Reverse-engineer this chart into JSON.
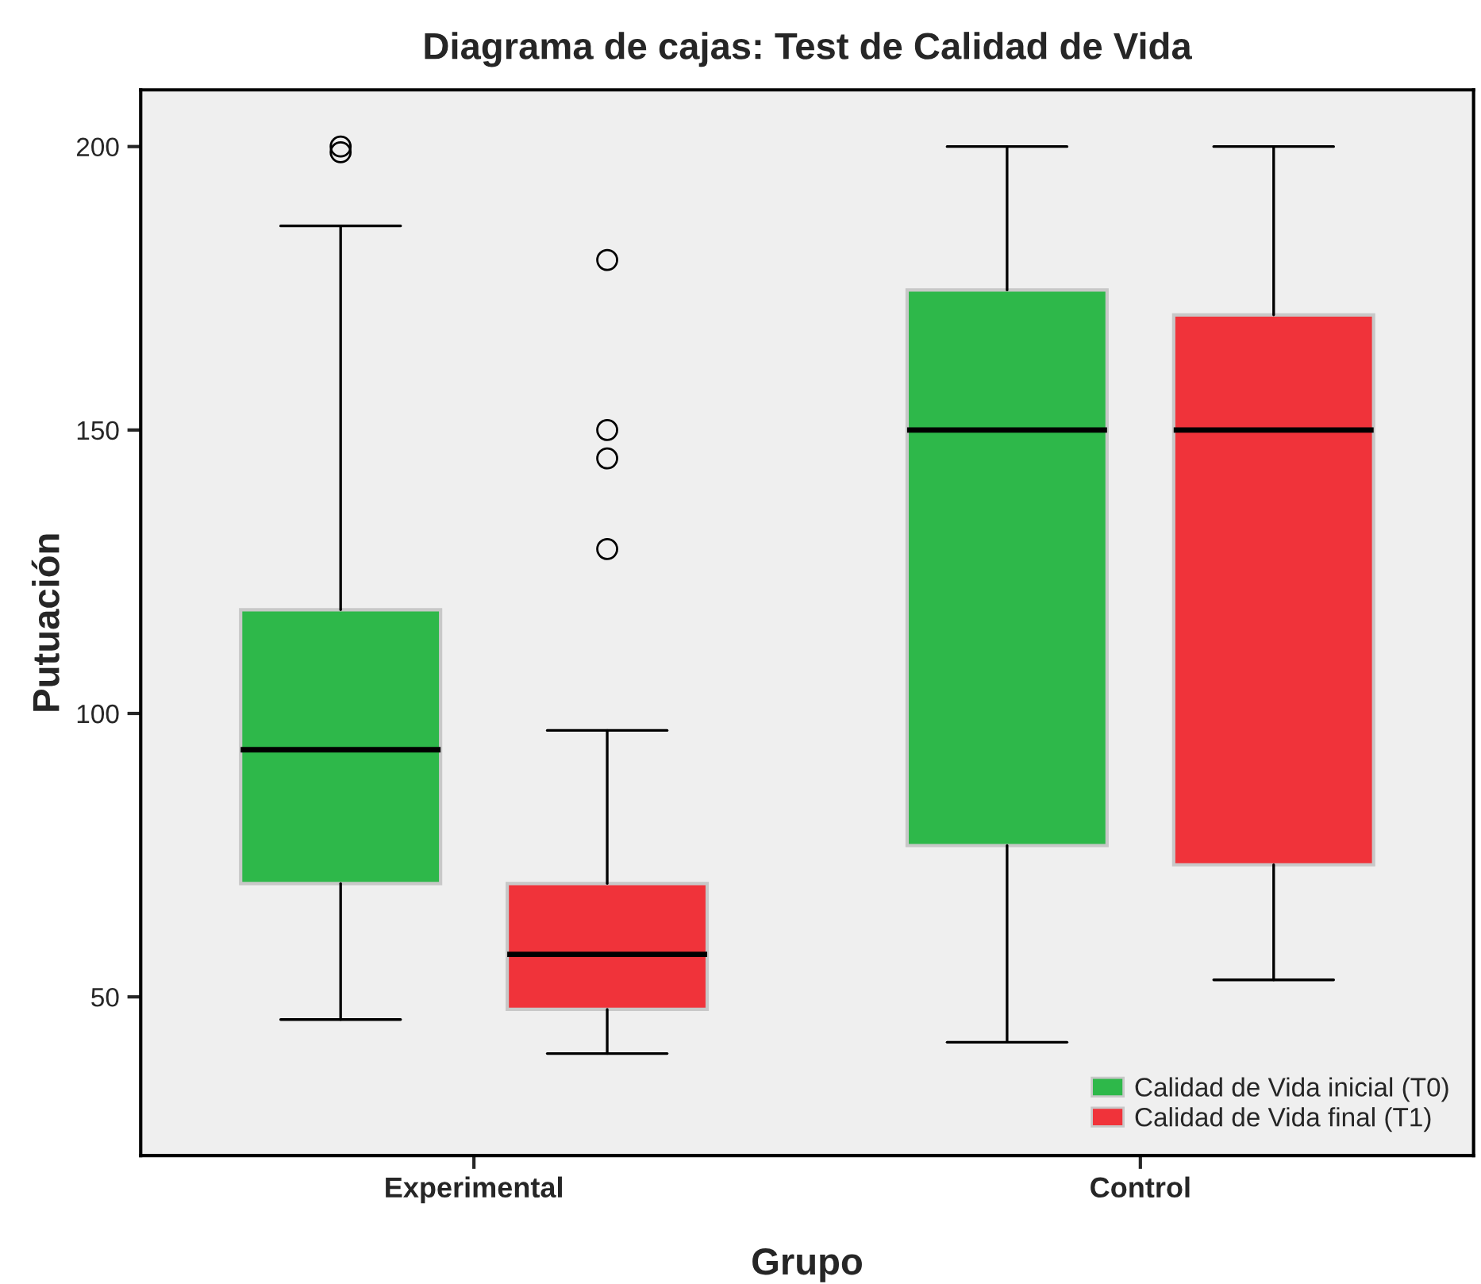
{
  "chart_data": {
    "type": "box",
    "title": "Diagrama de cajas: Test de Calidad de Vida",
    "xlabel": "Grupo",
    "ylabel": "Putuación",
    "categories": [
      "Experimental",
      "Control"
    ],
    "series": [
      {
        "name": "Calidad de Vida inicial (T0)",
        "color": "#2eb84a",
        "boxes": [
          {
            "low": 46,
            "q1": 70,
            "median": 93.6,
            "q3": 118.3,
            "high": 186,
            "outliers": [
              199,
              200
            ]
          },
          {
            "low": 42,
            "q1": 76.7,
            "median": 150,
            "q3": 174.7,
            "high": 200
          }
        ]
      },
      {
        "name": "Calidad de Vida final (T1)",
        "color": "#f0333a",
        "boxes": [
          {
            "low": 40,
            "q1": 47.8,
            "median": 57.5,
            "q3": 70,
            "high": 97,
            "outliers": [
              129,
              145,
              150,
              180
            ]
          },
          {
            "low": 53,
            "q1": 73.3,
            "median": 150,
            "q3": 170.3,
            "high": 200
          }
        ]
      }
    ],
    "ylim": [
      22,
      210
    ],
    "yticks": [
      50,
      100,
      150,
      200
    ],
    "grid": false,
    "legend": "bottom right"
  }
}
